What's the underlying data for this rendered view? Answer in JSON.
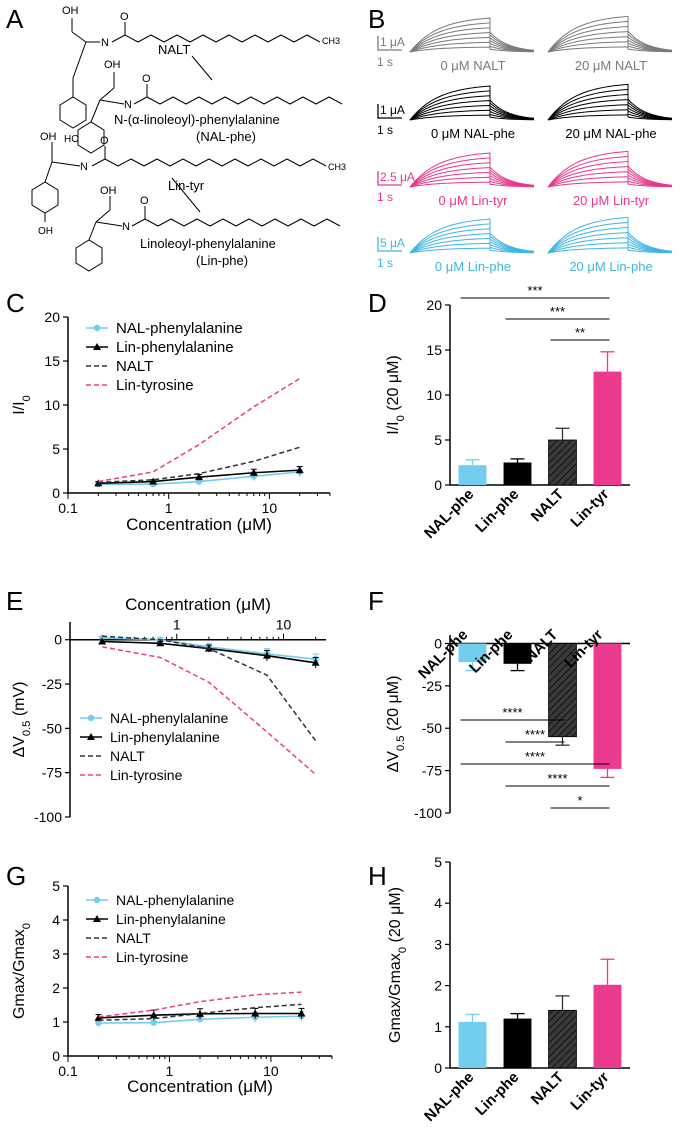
{
  "panels": {
    "a": "A",
    "b": "B",
    "c": "C",
    "d": "D",
    "e": "E",
    "f": "F",
    "g": "G",
    "h": "H"
  },
  "colors": {
    "nal_phe": "#73cdee",
    "lin_phe": "#000000",
    "nalt": "#333333",
    "lin_tyr": "#ec3b8f",
    "traces_gray": "#7a7a7a",
    "traces_pink": "#e8388b",
    "traces_cyan": "#3fb6e2"
  },
  "structures": {
    "nalt": "NALT",
    "nal_phe": "N-(α-linoleoyl)-phenylalanine",
    "nal_phe_abbr": "(NAL-phe)",
    "lin_tyr": "Lin-tyr",
    "lin_phe": "Linoleoyl-phenylalanine",
    "lin_phe_abbr": "(Lin-phe)",
    "atom_oh": "OH",
    "atom_o": "O",
    "atom_n": "N",
    "atom_h": "H",
    "atom_ho": "HO",
    "atom_ch3": "CH3"
  },
  "traces": [
    {
      "scale_y": "1 μA",
      "scale_x": "1 s",
      "left_label": "0 μM NALT",
      "right_label": "20 μM NALT",
      "color": "#7a7a7a"
    },
    {
      "scale_y": "1 μA",
      "scale_x": "1 s",
      "left_label": "0 μM NAL-phe",
      "right_label": "20 μM NAL-phe",
      "color": "#000000"
    },
    {
      "scale_y": "2.5 μA",
      "scale_x": "1 s",
      "left_label": "0 μM Lin-tyr",
      "right_label": "20 μM Lin-tyr",
      "color": "#e8388b"
    },
    {
      "scale_y": "5 μA",
      "scale_x": "1 s",
      "left_label": "0 μM Lin-phe",
      "right_label": "20 μM Lin-phe",
      "color": "#3fb6e2"
    }
  ],
  "chart_data": [
    {
      "panel": "C",
      "type": "line",
      "xscale": "log",
      "xlabel": "Concentration (μM)",
      "ylabel": "I/I0",
      "xlim": [
        0.1,
        40
      ],
      "ylim": [
        0,
        20
      ],
      "xticks": [
        "0.1",
        "1",
        "10"
      ],
      "yticks": [
        "0",
        "5",
        "10",
        "15",
        "20"
      ],
      "legend": "top-left",
      "x": [
        0.2,
        0.7,
        2,
        7,
        20
      ],
      "series": [
        {
          "name": "NAL-phenylalanine",
          "values": [
            1.0,
            1.0,
            1.3,
            1.9,
            2.4
          ],
          "err": [
            0.2,
            0.2,
            0.3,
            0.5,
            0.6
          ],
          "style": "marker-circle"
        },
        {
          "name": "Lin-phenylalanine",
          "values": [
            1.1,
            1.3,
            1.8,
            2.3,
            2.6
          ],
          "err": [
            0.2,
            0.2,
            0.3,
            0.4,
            0.4
          ],
          "style": "marker-triangle"
        },
        {
          "name": "NALT",
          "values": [
            1.2,
            1.5,
            2.2,
            3.6,
            5.2
          ],
          "style": "dashed"
        },
        {
          "name": "Lin-tyrosine",
          "values": [
            1.3,
            2.4,
            5.5,
            9.8,
            13.0
          ],
          "style": "dashed"
        }
      ]
    },
    {
      "panel": "D",
      "type": "bar",
      "ylabel": "I/I0 (20 μM)",
      "ylim": [
        0,
        20
      ],
      "yticks": [
        "0",
        "5",
        "10",
        "15",
        "20"
      ],
      "categories": [
        "NAL-phe",
        "Lin-phe",
        "NALT",
        "Lin-tyr"
      ],
      "values": [
        2.2,
        2.5,
        5.0,
        12.6
      ],
      "err": [
        0.6,
        0.4,
        1.3,
        2.2
      ],
      "significance": [
        "***",
        "***",
        "**"
      ]
    },
    {
      "panel": "E",
      "type": "line",
      "xscale": "log",
      "xlabel": "Concentration (μM)",
      "ylabel": "ΔV0.5 (mV)",
      "xlim": [
        0.1,
        25
      ],
      "ylim": [
        -100,
        10
      ],
      "xticks": [
        "1",
        "10"
      ],
      "yticks": [
        "0",
        "-25",
        "-50",
        "-75",
        "-100"
      ],
      "legend": "bottom-left",
      "x": [
        0.2,
        0.7,
        2,
        7,
        20
      ],
      "series": [
        {
          "name": "NAL-phenylalanine",
          "values": [
            1,
            0,
            -4,
            -8,
            -11
          ],
          "err": [
            1,
            1,
            2,
            3,
            3
          ],
          "style": "marker-circle"
        },
        {
          "name": "Lin-phenylalanine",
          "values": [
            -1,
            -2,
            -5,
            -9,
            -13
          ],
          "err": [
            1,
            1,
            2,
            3,
            3
          ],
          "style": "marker-triangle"
        },
        {
          "name": "NALT",
          "values": [
            2,
            0,
            -5,
            -20,
            -57
          ],
          "style": "dashed"
        },
        {
          "name": "Lin-tyrosine",
          "values": [
            -4,
            -10,
            -24,
            -52,
            -76
          ],
          "style": "dashed"
        }
      ]
    },
    {
      "panel": "F",
      "type": "bar",
      "ylabel": "ΔV0.5 (20 μM)",
      "ylim": [
        -100,
        5
      ],
      "yticks": [
        "0",
        "-25",
        "-50",
        "-75",
        "-100"
      ],
      "categories": [
        "NAL-phe",
        "Lin-phe",
        "NALT",
        "Lin-tyr"
      ],
      "values": [
        -11,
        -12,
        -55,
        -74
      ],
      "err": [
        5,
        4,
        5,
        5
      ],
      "significance": [
        "****",
        "****",
        "****",
        "****",
        "*"
      ]
    },
    {
      "panel": "G",
      "type": "line",
      "xscale": "log",
      "xlabel": "Concentration (μM)",
      "ylabel": "Gmax/Gmax0",
      "xlim": [
        0.1,
        40
      ],
      "ylim": [
        0,
        5
      ],
      "xticks": [
        "0.1",
        "1",
        "10"
      ],
      "yticks": [
        "0",
        "1",
        "2",
        "3",
        "4",
        "5"
      ],
      "legend": "top-left",
      "x": [
        0.2,
        0.7,
        2,
        7,
        20
      ],
      "series": [
        {
          "name": "NAL-phenylalanine",
          "values": [
            0.97,
            0.98,
            1.08,
            1.14,
            1.17
          ],
          "err": [
            0.05,
            0.05,
            0.1,
            0.15,
            0.15
          ],
          "style": "marker-circle"
        },
        {
          "name": "Lin-phenylalanine",
          "values": [
            1.12,
            1.2,
            1.24,
            1.25,
            1.25
          ],
          "err": [
            0.1,
            0.15,
            0.15,
            0.15,
            0.15
          ],
          "style": "marker-triangle"
        },
        {
          "name": "NALT",
          "values": [
            1.05,
            1.1,
            1.25,
            1.42,
            1.52
          ],
          "style": "dashed"
        },
        {
          "name": "Lin-tyrosine",
          "values": [
            1.15,
            1.35,
            1.6,
            1.8,
            1.88
          ],
          "style": "dashed"
        }
      ]
    },
    {
      "panel": "H",
      "type": "bar",
      "ylabel": "Gmax/Gmax0 (20 μM)",
      "ylim": [
        0,
        5
      ],
      "yticks": [
        "0",
        "1",
        "2",
        "3",
        "4",
        "5"
      ],
      "categories": [
        "NAL-phe",
        "Lin-phe",
        "NALT",
        "Lin-tyr"
      ],
      "values": [
        1.12,
        1.2,
        1.4,
        2.02
      ],
      "err": [
        0.18,
        0.12,
        0.35,
        0.62
      ]
    }
  ]
}
